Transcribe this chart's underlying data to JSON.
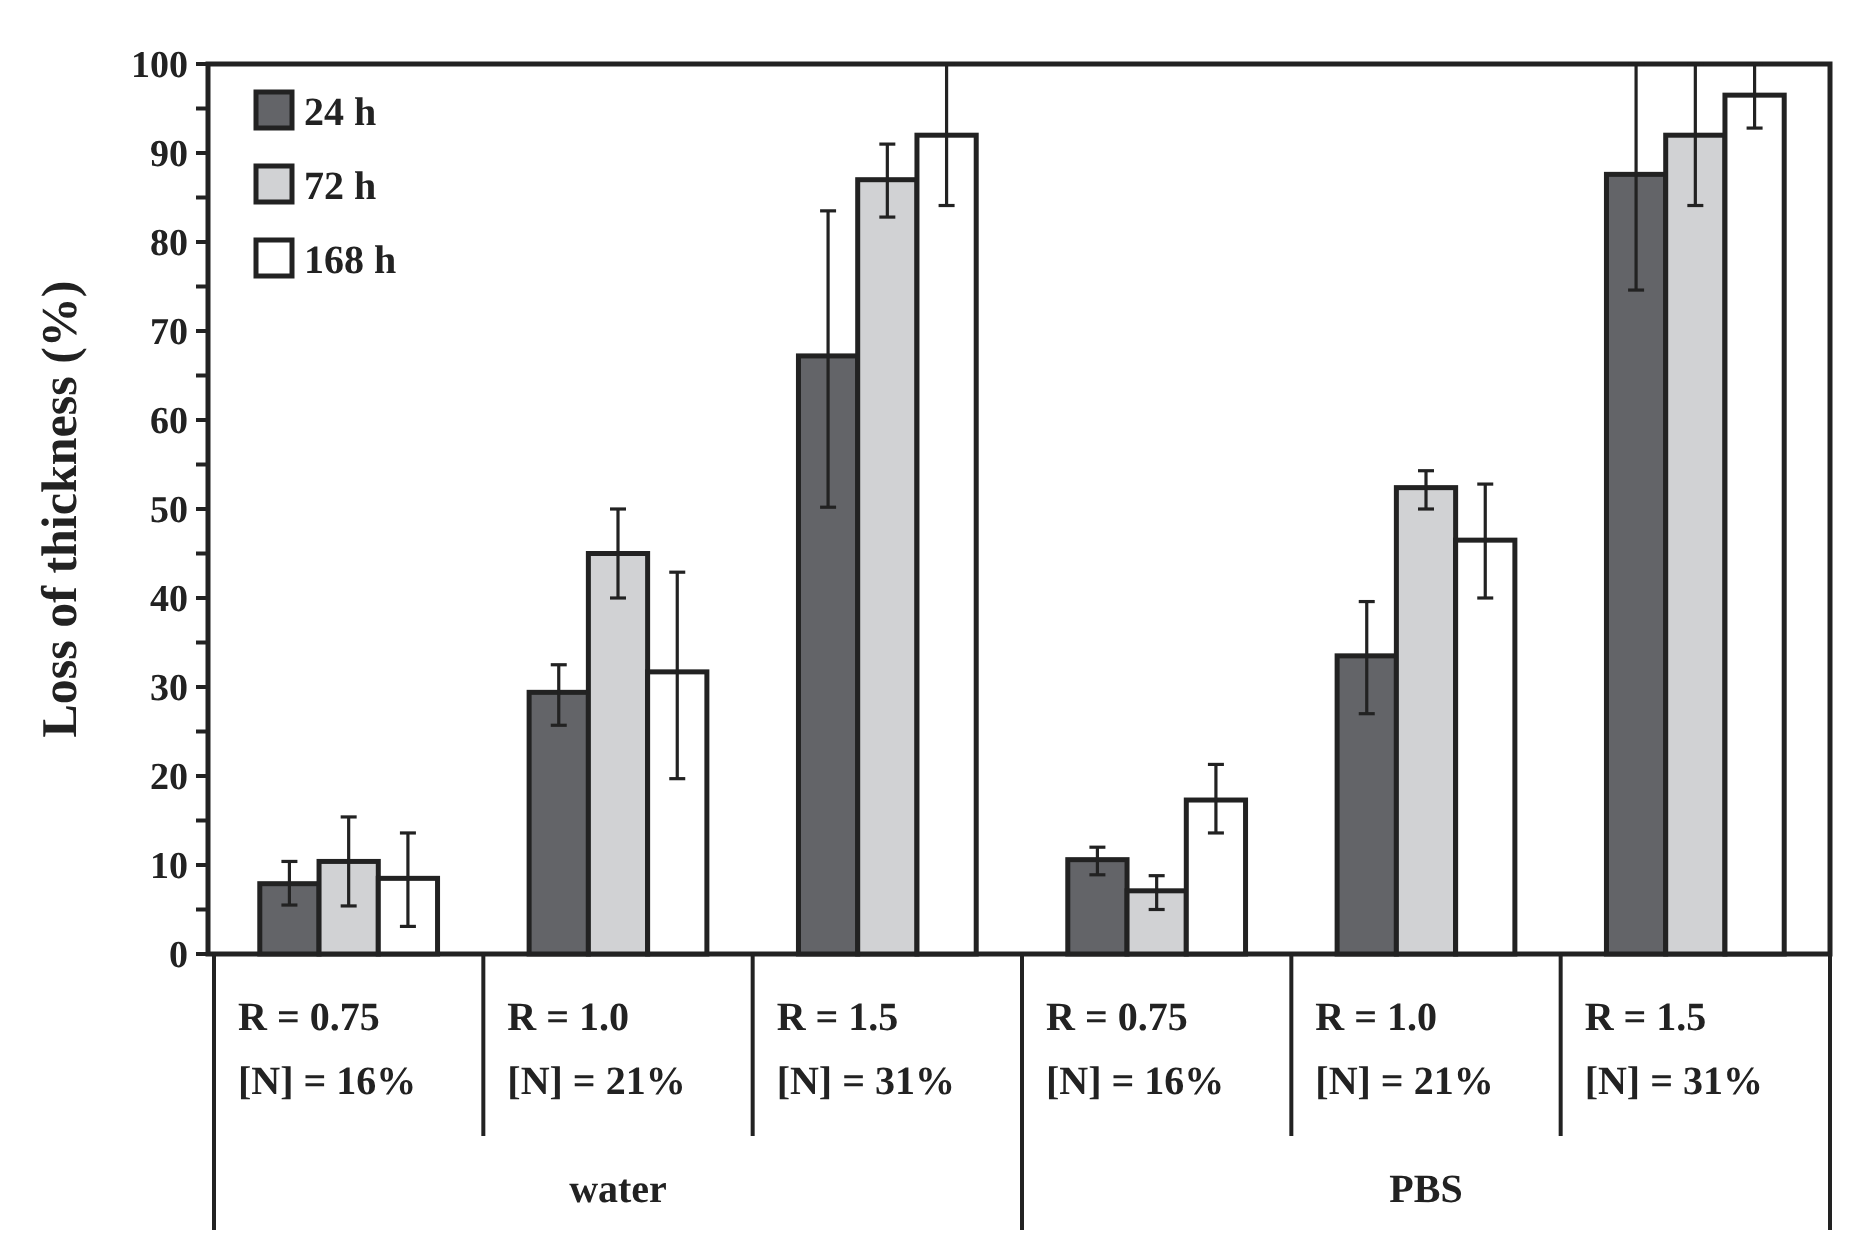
{
  "chart_data": {
    "type": "bar",
    "ylabel": "Loss of thickness (%)",
    "categories": [
      "R = 0.75\n[N] = 16%",
      "R = 1.0\n[N] = 21%",
      "R = 1.5\n[N] = 31%",
      "R = 0.75\n[N] = 16%",
      "R = 1.0\n[N] = 21%",
      "R = 1.5\n[N] = 31%"
    ],
    "series": [
      {
        "name": "24 h",
        "color": "#636468",
        "values": [
          7.9,
          29.4,
          67.2,
          10.6,
          33.5,
          87.6
        ],
        "errors": [
          [
            5.5,
            10.4
          ],
          [
            25.7,
            32.5
          ],
          [
            50.2,
            83.5
          ],
          [
            8.9,
            12
          ],
          [
            27,
            39.6
          ],
          [
            74.6,
            100
          ]
        ]
      },
      {
        "name": "72 h",
        "color": "#d1d2d4",
        "values": [
          10.4,
          45,
          87,
          7.1,
          52.4,
          92
        ],
        "errors": [
          [
            5.4,
            15.4
          ],
          [
            40,
            50
          ],
          [
            82.8,
            91
          ],
          [
            5,
            8.8
          ],
          [
            50,
            54.3
          ],
          [
            84.1,
            100
          ]
        ]
      },
      {
        "name": "168 h",
        "color": "#ffffff",
        "values": [
          8.5,
          31.7,
          92,
          17.3,
          46.5,
          96.5
        ],
        "errors": [
          [
            3.1,
            13.6
          ],
          [
            19.7,
            42.9
          ],
          [
            84.1,
            100
          ],
          [
            13.6,
            21.3
          ],
          [
            40,
            52.8
          ],
          [
            92.8,
            100
          ]
        ]
      }
    ],
    "ylim": [
      0,
      100
    ],
    "yticks": [
      0,
      {
        "value": 5,
        "label": null
      },
      10,
      {
        "value": 15,
        "label": null
      },
      20,
      {
        "value": 25,
        "label": null
      },
      30,
      {
        "value": 35,
        "label": null
      },
      40,
      {
        "value": 45,
        "label": null
      },
      50,
      {
        "value": 55,
        "label": null
      },
      60,
      {
        "value": 65,
        "label": null
      },
      70,
      {
        "value": 75,
        "label": null
      },
      80,
      {
        "value": 85,
        "label": null
      },
      90,
      {
        "value": 95,
        "label": null
      },
      100
    ],
    "legend": "top left",
    "annotations": [
      "water",
      "PBS"
    ]
  }
}
